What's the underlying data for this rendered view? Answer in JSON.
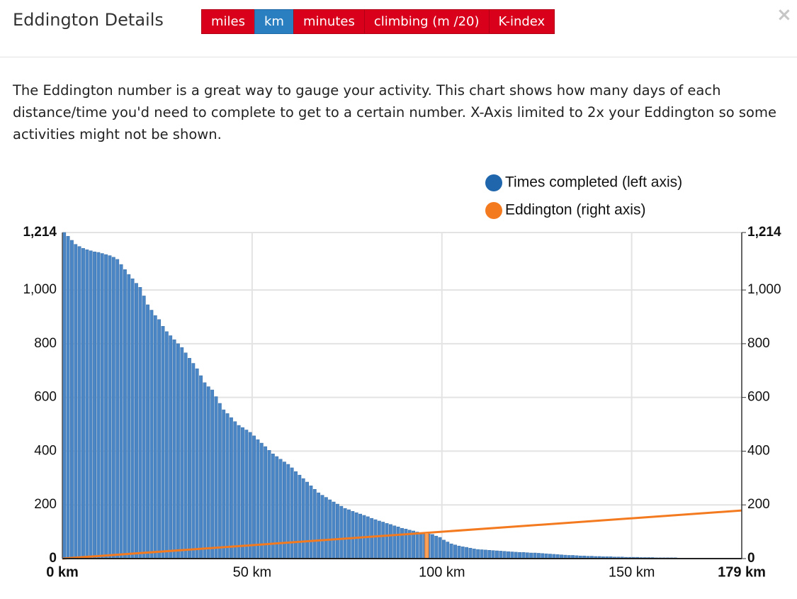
{
  "header": {
    "title": "Eddington Details",
    "buttons": [
      "miles",
      "km",
      "minutes",
      "climbing (m /20)",
      "K-index"
    ],
    "active_button": 1,
    "close": "×"
  },
  "description": "The Eddington number is a great way to gauge your activity. This chart shows how many days of each distance/time you'd need to complete to get to a certain number. X-Axis limited to 2x your Eddington so some activities might not be shown.",
  "chart_data": {
    "type": "bar",
    "x": [
      1,
      2,
      3,
      4,
      5,
      6,
      7,
      8,
      9,
      10,
      11,
      12,
      13,
      14,
      15,
      16,
      17,
      18,
      19,
      20,
      21,
      22,
      23,
      24,
      25,
      26,
      27,
      28,
      29,
      30,
      31,
      32,
      33,
      34,
      35,
      36,
      37,
      38,
      39,
      40,
      41,
      42,
      43,
      44,
      45,
      46,
      47,
      48,
      49,
      50,
      51,
      52,
      53,
      54,
      55,
      56,
      57,
      58,
      59,
      60,
      61,
      62,
      63,
      64,
      65,
      66,
      67,
      68,
      69,
      70,
      71,
      72,
      73,
      74,
      75,
      76,
      77,
      78,
      79,
      80,
      81,
      82,
      83,
      84,
      85,
      86,
      87,
      88,
      89,
      90,
      91,
      92,
      93,
      94,
      95,
      96,
      97,
      98,
      99,
      100,
      101,
      102,
      103,
      104,
      105,
      106,
      107,
      108,
      109,
      110,
      111,
      112,
      113,
      114,
      115,
      116,
      117,
      118,
      119,
      120,
      121,
      122,
      123,
      124,
      125,
      126,
      127,
      128,
      129,
      130,
      131,
      132,
      133,
      134,
      135,
      136,
      137,
      138,
      139,
      140,
      141,
      142,
      143,
      144,
      145,
      146,
      147,
      148,
      149,
      150,
      151,
      152,
      153,
      154,
      155,
      156,
      157,
      158,
      159,
      160,
      161,
      162,
      163,
      164,
      165,
      166,
      167,
      168,
      169,
      170,
      171,
      172,
      173,
      174,
      175,
      176,
      177,
      178,
      179
    ],
    "series": [
      {
        "name": "Times completed (left axis)",
        "color": "#4a86c5",
        "values": [
          1214,
          1200,
          1185,
          1170,
          1162,
          1155,
          1150,
          1146,
          1142,
          1140,
          1136,
          1132,
          1128,
          1122,
          1114,
          1095,
          1076,
          1058,
          1042,
          1025,
          1010,
          978,
          945,
          925,
          905,
          890,
          865,
          845,
          830,
          815,
          800,
          786,
          766,
          746,
          727,
          707,
          681,
          655,
          640,
          628,
          603,
          578,
          554,
          540,
          525,
          510,
          496,
          488,
          479,
          470,
          457,
          443,
          430,
          417,
          403,
          390,
          380,
          370,
          360,
          351,
          338,
          324,
          311,
          298,
          285,
          271,
          258,
          245,
          236,
          228,
          219,
          211,
          203,
          195,
          187,
          182,
          176,
          171,
          166,
          161,
          156,
          150,
          145,
          140,
          136,
          131,
          127,
          122,
          118,
          113,
          110,
          106,
          103,
          99,
          96,
          97,
          92,
          90,
          84,
          79,
          69,
          62,
          55,
          51,
          47,
          44,
          42,
          39,
          36,
          34,
          33,
          32,
          31,
          30,
          29,
          28,
          27,
          26,
          25,
          24,
          23,
          23,
          22,
          21,
          21,
          20,
          19,
          18,
          17,
          16,
          15,
          14,
          13,
          12,
          12,
          11,
          10,
          10,
          9,
          9,
          8,
          8,
          7,
          7,
          7,
          6,
          6,
          6,
          5,
          5,
          5,
          5,
          4,
          4,
          4,
          4,
          3,
          3,
          3,
          3,
          3,
          3,
          2,
          2,
          2,
          2,
          2,
          2,
          2,
          2,
          1,
          1,
          1,
          1,
          1,
          1,
          1,
          1,
          1
        ]
      },
      {
        "name": "Eddington (right axis)",
        "color": "#f47a20",
        "type": "line",
        "axis": "y2",
        "x": [
          0,
          179
        ],
        "values": [
          0,
          179
        ]
      }
    ],
    "eddington_number": 96,
    "xlim": [
      0,
      179
    ],
    "xticks": [
      {
        "value": 0,
        "label": "0 km"
      },
      {
        "value": 50,
        "label": "50 km"
      },
      {
        "value": 100,
        "label": "100 km"
      },
      {
        "value": 150,
        "label": "150 km"
      },
      {
        "value": 179,
        "label": "179 km"
      }
    ],
    "ylim": [
      0,
      1214
    ],
    "yticks": [
      0,
      200,
      400,
      600,
      800,
      {
        "value": 1000,
        "label": "1,000"
      },
      {
        "value": 1214,
        "label": "1,214"
      }
    ],
    "y2lim": [
      0,
      1214
    ],
    "y2ticks": [
      0,
      200,
      400,
      600,
      800,
      {
        "value": 1000,
        "label": "1,000"
      },
      {
        "value": 1214,
        "label": "1,214"
      }
    ],
    "grid": true,
    "legend": "top-right"
  }
}
